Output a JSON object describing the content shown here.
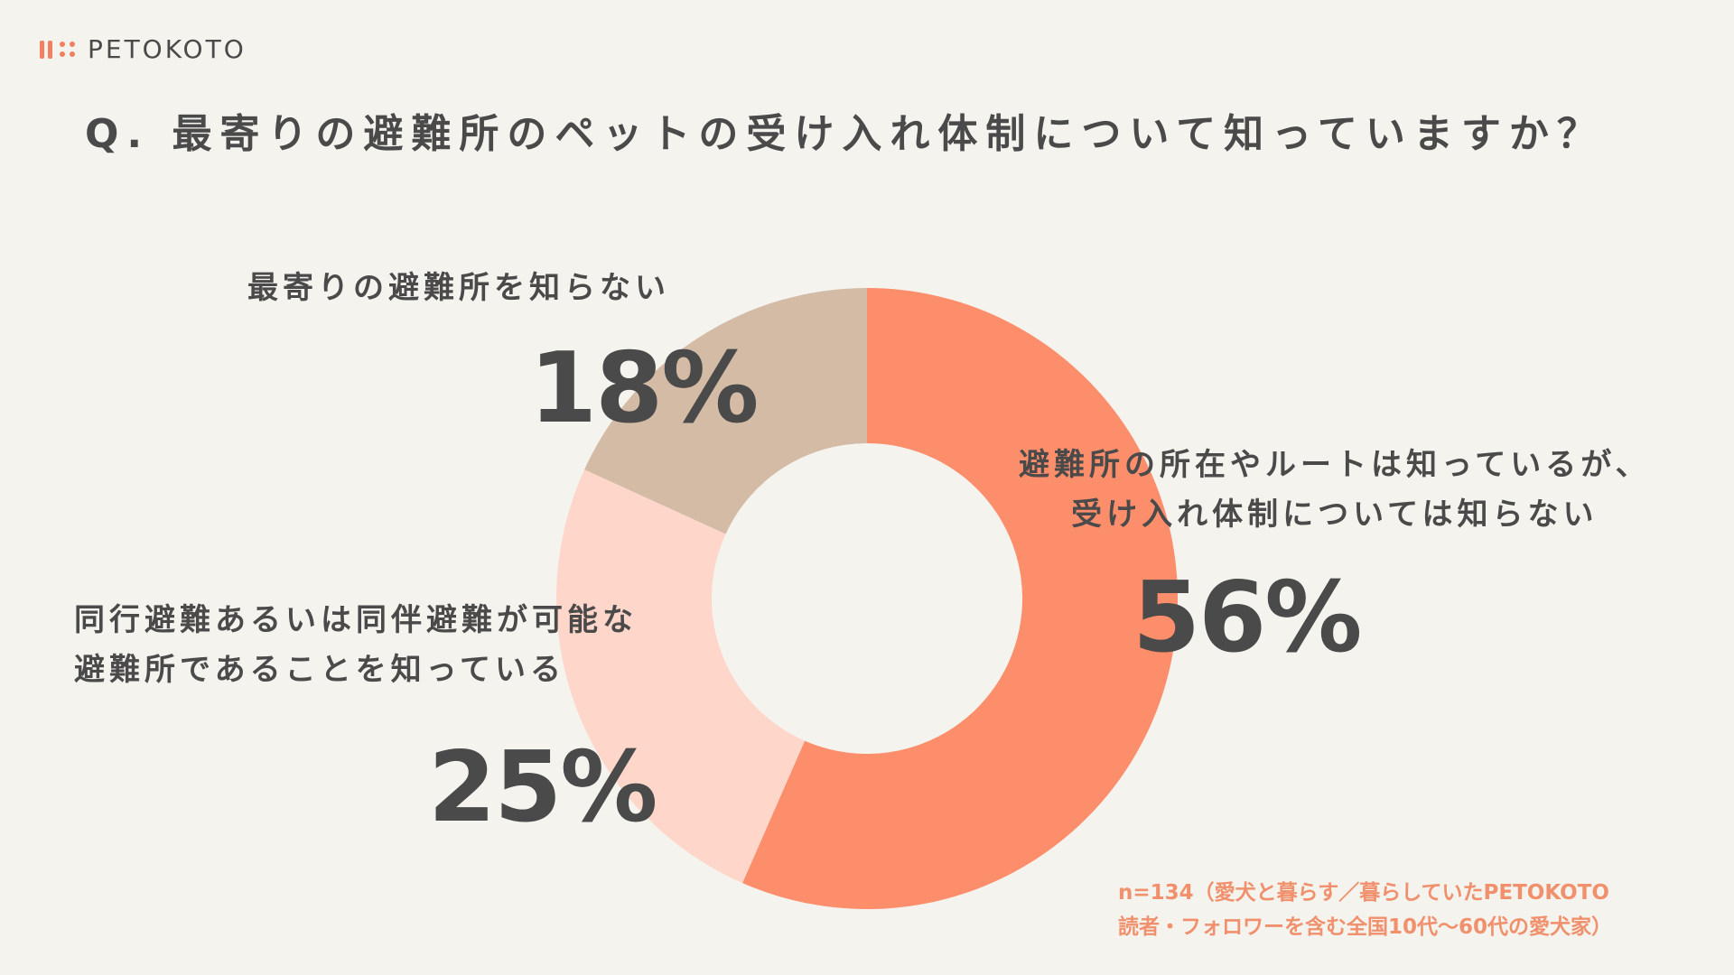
{
  "brand": {
    "name": "PETOKOTO",
    "accent": "#f0805f"
  },
  "title": "Q. 最寄りの避難所のペットの受け入れ体制について知っていますか？",
  "chart_data": {
    "type": "pie",
    "categories": [
      "避難所の所在やルートは知っているが、受け入れ体制については知らない",
      "同行避難あるいは同伴避難が可能な避難所であることを知っている",
      "最寄りの避難所を知らない"
    ],
    "values": [
      56,
      25,
      18
    ],
    "value_labels": [
      "56%",
      "25%",
      "18%"
    ],
    "colors": [
      "#fd8e6c",
      "#fed7ca",
      "#d4bba6"
    ],
    "donut": true,
    "legend": "none"
  },
  "labels": {
    "s56_line1": "避難所の所在やルートは知っているが、",
    "s56_line2": "受け入れ体制については知らない",
    "s25_line1": "同行避難あるいは同伴避難が可能な",
    "s25_line2": "避難所であることを知っている",
    "s18_line1": "最寄りの避難所を知らない"
  },
  "note": {
    "line1": "n=134（愛犬と暮らす／暮らしていたPETOKOTO",
    "line2": "読者・フォロワーを含む全国10代〜60代の愛犬家）"
  }
}
